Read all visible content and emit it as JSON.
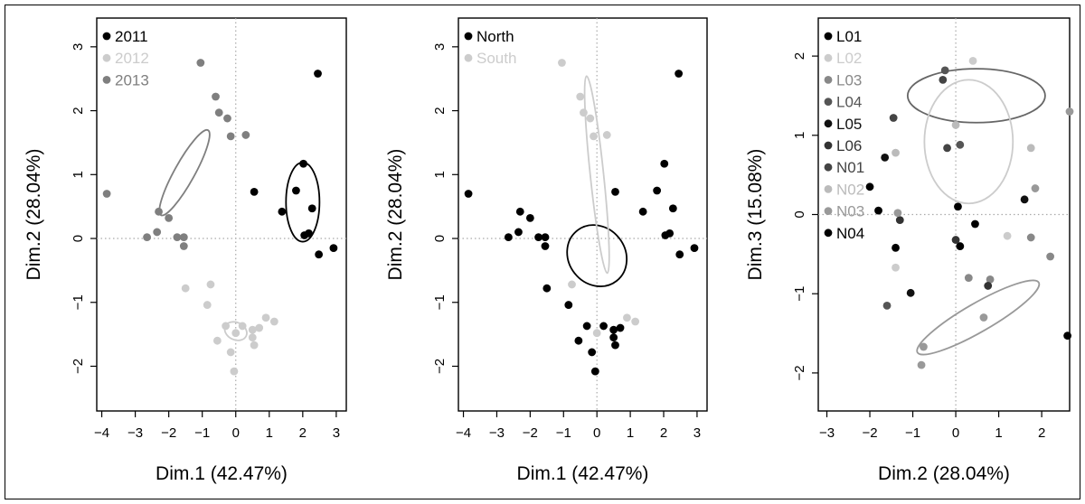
{
  "chart_data": [
    {
      "type": "scatter",
      "title": "",
      "xlabel": "Dim.1 (42.47%)",
      "ylabel": "Dim.2 (28.04%)",
      "xlim": [
        -4.15,
        3.3
      ],
      "ylim": [
        -2.7,
        3.45
      ],
      "xticks": [
        -4,
        -3,
        -2,
        -1,
        0,
        1,
        2,
        3
      ],
      "yticks": [
        -2,
        -1,
        0,
        1,
        2,
        3
      ],
      "grid": false,
      "reference_lines": {
        "x": 0,
        "y": 0
      },
      "legend": "top-left",
      "series": [
        {
          "name": "2011",
          "color": "#000000",
          "points": [
            [
              2.45,
              2.58
            ],
            [
              0.55,
              0.73
            ],
            [
              1.8,
              0.75
            ],
            [
              2.02,
              1.17
            ],
            [
              1.38,
              0.42
            ],
            [
              2.28,
              0.47
            ],
            [
              2.05,
              0.05
            ],
            [
              2.18,
              0.08
            ],
            [
              2.48,
              -0.25
            ],
            [
              2.92,
              -0.15
            ]
          ],
          "ellipse": {
            "cx": 2.0,
            "cy": 0.57,
            "rx": 0.5,
            "ry": 0.62,
            "rotation": 0
          }
        },
        {
          "name": "2012",
          "color": "#cccccc",
          "points": [
            [
              -1.5,
              -0.78
            ],
            [
              -0.75,
              -0.72
            ],
            [
              -0.85,
              -1.04
            ],
            [
              0.9,
              -1.24
            ],
            [
              1.15,
              -1.3
            ],
            [
              -0.3,
              -1.37
            ],
            [
              0.2,
              -1.37
            ],
            [
              0.0,
              -1.48
            ],
            [
              0.5,
              -1.43
            ],
            [
              0.7,
              -1.4
            ],
            [
              0.5,
              -1.55
            ],
            [
              -0.55,
              -1.6
            ],
            [
              0.55,
              -1.67
            ],
            [
              -0.15,
              -1.78
            ],
            [
              -0.05,
              -2.08
            ]
          ],
          "ellipse": {
            "cx": 0.0,
            "cy": -1.45,
            "rx": 0.26,
            "ry": 0.18,
            "rotation": -65
          }
        },
        {
          "name": "2013",
          "color": "#7f7f7f",
          "points": [
            [
              -1.05,
              2.75
            ],
            [
              -0.6,
              2.22
            ],
            [
              -0.5,
              1.97
            ],
            [
              -0.25,
              1.88
            ],
            [
              -0.15,
              1.6
            ],
            [
              0.3,
              1.62
            ],
            [
              -3.85,
              0.7
            ],
            [
              -2.3,
              0.42
            ],
            [
              -2.0,
              0.32
            ],
            [
              -2.65,
              0.02
            ],
            [
              -2.35,
              0.1
            ],
            [
              -1.75,
              0.02
            ],
            [
              -1.55,
              0.02
            ],
            [
              -1.55,
              -0.12
            ]
          ],
          "ellipse": {
            "cx": -1.53,
            "cy": 1.03,
            "rx": 0.3,
            "ry": 0.76,
            "rotation": 29
          }
        }
      ]
    },
    {
      "type": "scatter",
      "title": "",
      "xlabel": "Dim.1 (42.47%)",
      "ylabel": "Dim.2 (28.04%)",
      "xlim": [
        -4.15,
        3.3
      ],
      "ylim": [
        -2.7,
        3.45
      ],
      "xticks": [
        -4,
        -3,
        -2,
        -1,
        0,
        1,
        2,
        3
      ],
      "yticks": [
        -2,
        -1,
        0,
        1,
        2,
        3
      ],
      "grid": false,
      "reference_lines": {
        "x": 0,
        "y": 0
      },
      "legend": "top-left",
      "series": [
        {
          "name": "North",
          "color": "#000000",
          "points": [
            [
              2.45,
              2.58
            ],
            [
              0.55,
              0.73
            ],
            [
              1.8,
              0.75
            ],
            [
              2.02,
              1.17
            ],
            [
              1.38,
              0.42
            ],
            [
              2.28,
              0.47
            ],
            [
              2.05,
              0.05
            ],
            [
              2.18,
              0.08
            ],
            [
              2.48,
              -0.25
            ],
            [
              2.92,
              -0.15
            ],
            [
              -3.85,
              0.7
            ],
            [
              -2.3,
              0.42
            ],
            [
              -2.0,
              0.32
            ],
            [
              -2.65,
              0.02
            ],
            [
              -2.35,
              0.1
            ],
            [
              -1.75,
              0.02
            ],
            [
              -1.55,
              0.02
            ],
            [
              -1.55,
              -0.12
            ],
            [
              -1.5,
              -0.78
            ],
            [
              -0.85,
              -1.04
            ],
            [
              -0.3,
              -1.37
            ],
            [
              0.2,
              -1.37
            ],
            [
              0.5,
              -1.43
            ],
            [
              0.7,
              -1.4
            ],
            [
              0.5,
              -1.55
            ],
            [
              -0.55,
              -1.6
            ],
            [
              0.55,
              -1.67
            ],
            [
              -0.15,
              -1.78
            ],
            [
              -0.05,
              -2.08
            ]
          ],
          "ellipse": {
            "cx": 0.0,
            "cy": -0.27,
            "rx": 0.85,
            "ry": 0.5,
            "rotation": -38
          }
        },
        {
          "name": "South",
          "color": "#cccccc",
          "points": [
            [
              -1.05,
              2.75
            ],
            [
              -0.5,
              2.22
            ],
            [
              -0.4,
              1.97
            ],
            [
              -0.2,
              1.88
            ],
            [
              -0.1,
              1.6
            ],
            [
              0.3,
              1.62
            ],
            [
              -0.75,
              -0.72
            ],
            [
              0.9,
              -1.24
            ],
            [
              1.15,
              -1.3
            ],
            [
              0.0,
              -1.48
            ]
          ],
          "ellipse": {
            "cx": 0.0,
            "cy": 1.0,
            "rx": 0.2,
            "ry": 1.55,
            "rotation": -6
          }
        }
      ]
    },
    {
      "type": "scatter",
      "title": "",
      "xlabel": "Dim.2 (28.04%)",
      "ylabel": "Dim.3 (15.08%)",
      "xlim": [
        -3.2,
        2.65
      ],
      "ylim": [
        -2.48,
        2.48
      ],
      "xticks": [
        -3,
        -2,
        -1,
        0,
        1,
        2
      ],
      "yticks": [
        -2,
        -1,
        0,
        1,
        2
      ],
      "grid": false,
      "reference_lines": {
        "x": 0,
        "y": 0
      },
      "legend": "top-left",
      "series": [
        {
          "name": "L01",
          "color": "#000000",
          "points": [
            [
              -2.0,
              0.35
            ],
            [
              -1.4,
              -0.42
            ],
            [
              0.45,
              -0.12
            ]
          ]
        },
        {
          "name": "L02",
          "color": "#cccccc",
          "points": [
            [
              0.4,
              1.94
            ],
            [
              1.2,
              -0.27
            ],
            [
              -1.4,
              -0.67
            ]
          ]
        },
        {
          "name": "L03",
          "color": "#888888",
          "points": [
            [
              1.75,
              -0.29
            ],
            [
              2.2,
              -0.53
            ],
            [
              0.8,
              -0.82
            ],
            [
              0.3,
              -0.8
            ]
          ]
        },
        {
          "name": "L04",
          "color": "#555555",
          "points": [
            [
              -0.25,
              1.82
            ],
            [
              0.1,
              0.88
            ],
            [
              -1.6,
              -1.15
            ]
          ]
        },
        {
          "name": "L05",
          "color": "#111111",
          "points": [
            [
              -1.65,
              0.72
            ],
            [
              -1.05,
              -0.99
            ],
            [
              1.6,
              0.19
            ]
          ]
        },
        {
          "name": "L06",
          "color": "#333333",
          "points": [
            [
              0.0,
              -0.32
            ],
            [
              -1.3,
              -0.07
            ],
            [
              0.75,
              -0.9
            ]
          ]
        },
        {
          "name": "N01",
          "color": "#444444",
          "points": [
            [
              -0.3,
              1.7
            ],
            [
              -1.45,
              1.22
            ],
            [
              -0.2,
              0.84
            ]
          ]
        },
        {
          "name": "N02",
          "color": "#bbbbbb",
          "points": [
            [
              1.75,
              0.84
            ],
            [
              -1.4,
              0.78
            ],
            [
              0.0,
              1.13
            ]
          ]
        },
        {
          "name": "N03",
          "color": "#999999",
          "points": [
            [
              2.65,
              1.3
            ],
            [
              1.85,
              0.33
            ],
            [
              -1.35,
              0.02
            ],
            [
              -0.75,
              -1.67
            ],
            [
              -0.8,
              -1.9
            ],
            [
              0.65,
              -1.3
            ]
          ]
        },
        {
          "name": "N04",
          "color": "#000000",
          "points": [
            [
              -1.8,
              0.05
            ],
            [
              0.05,
              0.1
            ],
            [
              0.1,
              -0.4
            ],
            [
              2.6,
              -1.53
            ]
          ]
        }
      ],
      "ellipses": [
        {
          "color": "#666666",
          "cx": 0.48,
          "cy": 1.5,
          "rx": 1.6,
          "ry": 0.34,
          "rotation": 0
        },
        {
          "color": "#cccccc",
          "cx": 0.3,
          "cy": 0.92,
          "rx": 1.03,
          "ry": 0.78,
          "rotation": 0
        },
        {
          "color": "#999999",
          "cx": 0.52,
          "cy": -1.3,
          "rx": 1.63,
          "ry": 0.18,
          "rotation": -30
        }
      ]
    }
  ]
}
